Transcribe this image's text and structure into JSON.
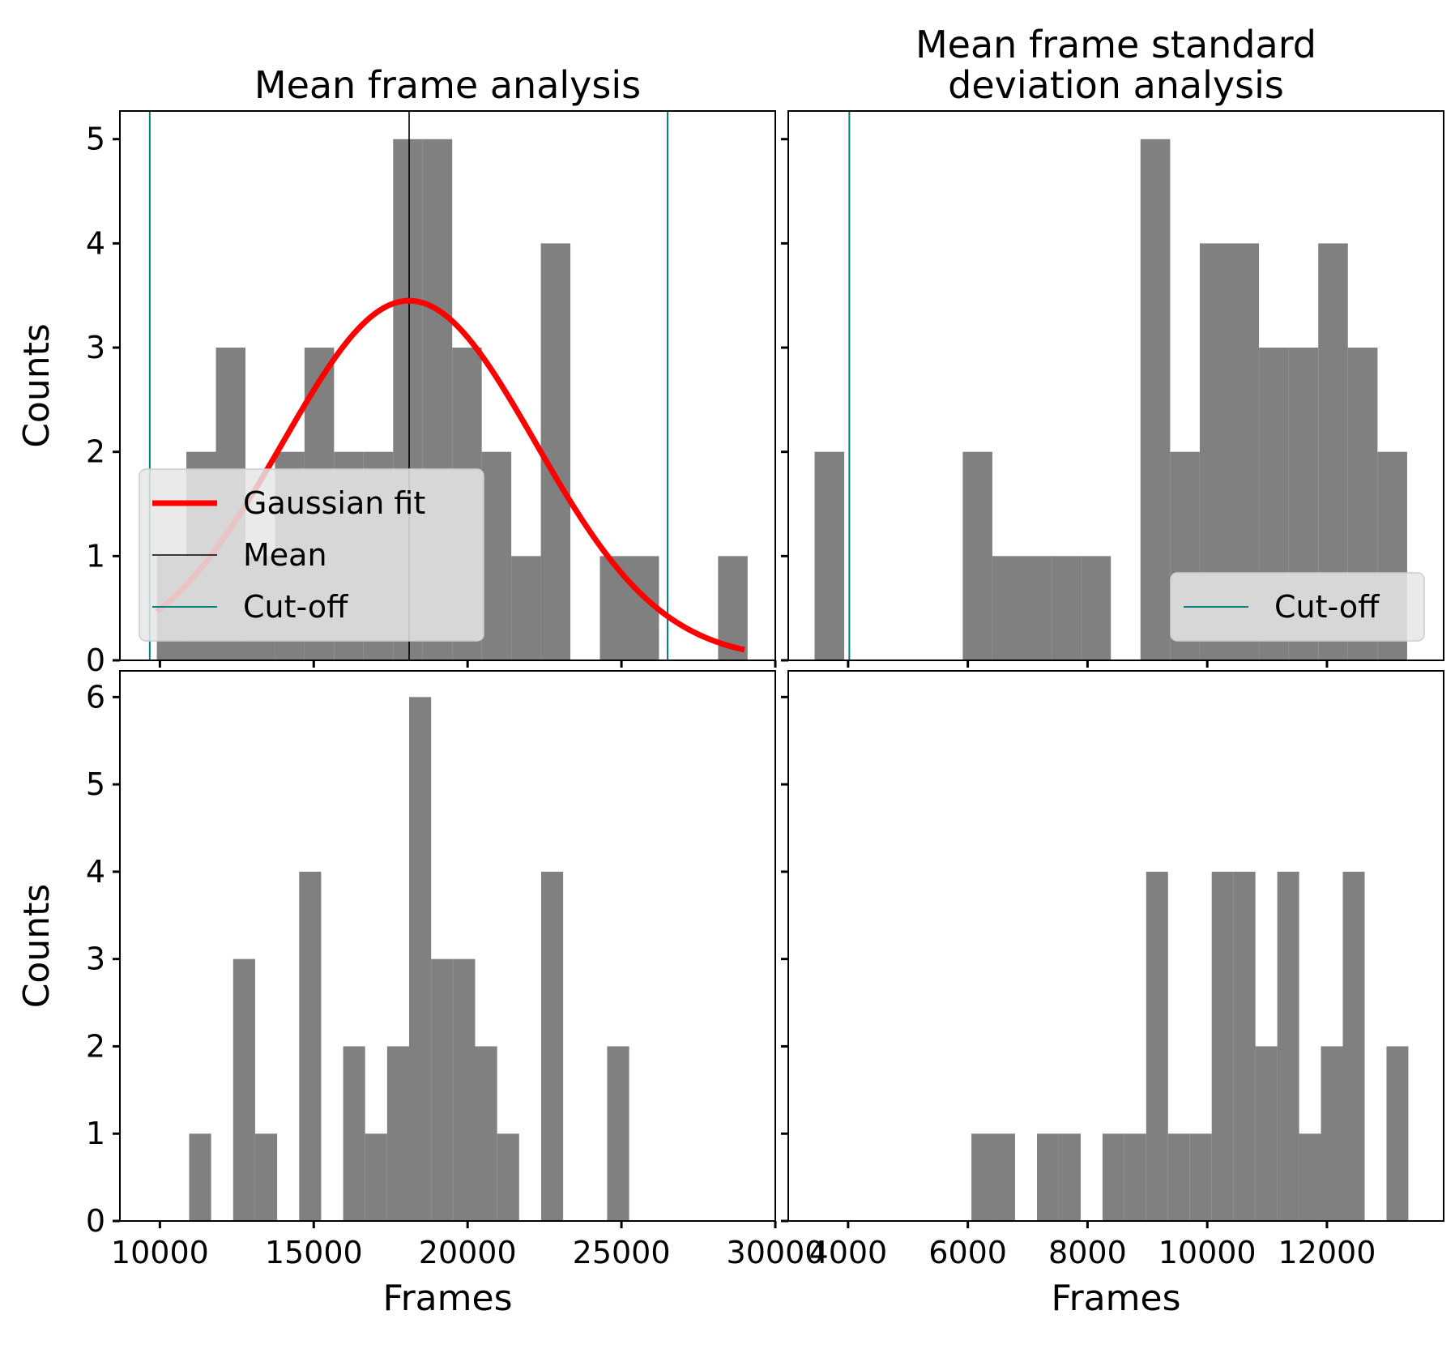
{
  "colors": {
    "bar": "#808080",
    "gaussian": "#ff0000",
    "mean": "#000000",
    "cutoff": "#008080",
    "legend_bg": "#e6e6e6"
  },
  "chart_data": [
    {
      "type": "bar",
      "title": "Mean frame analysis",
      "xlabel": "",
      "ylabel": "Counts",
      "xlim": [
        8700,
        30000
      ],
      "ylim": [
        0,
        5.27
      ],
      "xticks": [
        10000,
        15000,
        20000,
        25000,
        30000
      ],
      "xtick_labels": [
        "",
        "",
        "",
        "",
        ""
      ],
      "yticks": [
        0,
        1,
        2,
        3,
        4,
        5
      ],
      "ytick_labels": [
        "0",
        "1",
        "2",
        "3",
        "4",
        "5"
      ],
      "bin_width": 960,
      "bins": [
        {
          "x0": 9900,
          "count": 1
        },
        {
          "x0": 10860,
          "count": 2
        },
        {
          "x0": 11820,
          "count": 3
        },
        {
          "x0": 12780,
          "count": 1
        },
        {
          "x0": 13740,
          "count": 2
        },
        {
          "x0": 14700,
          "count": 3
        },
        {
          "x0": 15660,
          "count": 2
        },
        {
          "x0": 16620,
          "count": 2
        },
        {
          "x0": 17580,
          "count": 5
        },
        {
          "x0": 18540,
          "count": 5
        },
        {
          "x0": 19500,
          "count": 3
        },
        {
          "x0": 20460,
          "count": 2
        },
        {
          "x0": 21420,
          "count": 1
        },
        {
          "x0": 22380,
          "count": 4
        },
        {
          "x0": 23340,
          "count": 0
        },
        {
          "x0": 24300,
          "count": 1
        },
        {
          "x0": 25260,
          "count": 1
        },
        {
          "x0": 26220,
          "count": 0
        },
        {
          "x0": 27180,
          "count": 0
        },
        {
          "x0": 28140,
          "count": 1
        }
      ],
      "gaussian": {
        "label": "Gaussian fit",
        "amplitude": 3.45,
        "mean": 18100,
        "sigma": 4100,
        "x_range": [
          9900,
          29000
        ]
      },
      "mean_line": {
        "label": "Mean",
        "x": 18100
      },
      "cutoff_lines": {
        "label": "Cut-off",
        "x": [
          9670,
          26500
        ]
      },
      "legend": {
        "location": "lower-left",
        "entries": [
          "Gaussian fit",
          "Mean",
          "Cut-off"
        ]
      }
    },
    {
      "type": "bar",
      "title": "Mean frame standard\ndeviation analysis",
      "xlabel": "",
      "ylabel": "",
      "xlim": [
        3000,
        13950
      ],
      "ylim": [
        0,
        5.27
      ],
      "xticks": [
        4000,
        6000,
        8000,
        10000,
        12000
      ],
      "xtick_labels": [
        "",
        "",
        "",
        "",
        ""
      ],
      "yticks": [
        0,
        1,
        2,
        3,
        4,
        5
      ],
      "ytick_labels": [
        "",
        "",
        "",
        "",
        "",
        ""
      ],
      "bin_width": 495,
      "bins": [
        {
          "x0": 3440,
          "count": 2
        },
        {
          "x0": 3935,
          "count": 0
        },
        {
          "x0": 4430,
          "count": 0
        },
        {
          "x0": 4925,
          "count": 0
        },
        {
          "x0": 5420,
          "count": 0
        },
        {
          "x0": 5915,
          "count": 2
        },
        {
          "x0": 6410,
          "count": 1
        },
        {
          "x0": 6905,
          "count": 1
        },
        {
          "x0": 7400,
          "count": 1
        },
        {
          "x0": 7895,
          "count": 1
        },
        {
          "x0": 8390,
          "count": 0
        },
        {
          "x0": 8885,
          "count": 5
        },
        {
          "x0": 9380,
          "count": 2
        },
        {
          "x0": 9875,
          "count": 4
        },
        {
          "x0": 10370,
          "count": 4
        },
        {
          "x0": 10865,
          "count": 3
        },
        {
          "x0": 11360,
          "count": 3
        },
        {
          "x0": 11855,
          "count": 4
        },
        {
          "x0": 12350,
          "count": 3
        },
        {
          "x0": 12845,
          "count": 2
        }
      ],
      "cutoff_lines": {
        "label": "Cut-off",
        "x": [
          4020
        ]
      },
      "legend": {
        "location": "lower-right",
        "entries": [
          "Cut-off"
        ]
      }
    },
    {
      "type": "bar",
      "title": "",
      "xlabel": "Frames",
      "ylabel": "Counts",
      "xlim": [
        8700,
        30000
      ],
      "ylim": [
        0,
        6.3
      ],
      "xticks": [
        10000,
        15000,
        20000,
        25000,
        30000
      ],
      "xtick_labels": [
        "10000",
        "15000",
        "20000",
        "25000",
        "30000"
      ],
      "yticks": [
        0,
        1,
        2,
        3,
        4,
        5,
        6
      ],
      "ytick_labels": [
        "0",
        "1",
        "2",
        "3",
        "4",
        "5",
        "6"
      ],
      "bin_width": 715,
      "bins": [
        {
          "x0": 10950,
          "count": 1
        },
        {
          "x0": 11665,
          "count": 0
        },
        {
          "x0": 12380,
          "count": 3
        },
        {
          "x0": 13095,
          "count": 1
        },
        {
          "x0": 13810,
          "count": 0
        },
        {
          "x0": 14525,
          "count": 4
        },
        {
          "x0": 15240,
          "count": 0
        },
        {
          "x0": 15955,
          "count": 2
        },
        {
          "x0": 16670,
          "count": 1
        },
        {
          "x0": 17385,
          "count": 2
        },
        {
          "x0": 18100,
          "count": 6
        },
        {
          "x0": 18815,
          "count": 3
        },
        {
          "x0": 19530,
          "count": 3
        },
        {
          "x0": 20245,
          "count": 2
        },
        {
          "x0": 20960,
          "count": 1
        },
        {
          "x0": 21675,
          "count": 0
        },
        {
          "x0": 22390,
          "count": 4
        },
        {
          "x0": 23105,
          "count": 0
        },
        {
          "x0": 23820,
          "count": 0
        },
        {
          "x0": 24535,
          "count": 2
        }
      ]
    },
    {
      "type": "bar",
      "title": "",
      "xlabel": "Frames",
      "ylabel": "",
      "xlim": [
        3000,
        13950
      ],
      "ylim": [
        0,
        6.3
      ],
      "xticks": [
        4000,
        6000,
        8000,
        10000,
        12000
      ],
      "xtick_labels": [
        "4000",
        "6000",
        "8000",
        "10000",
        "12000"
      ],
      "yticks": [
        0,
        1,
        2,
        3,
        4,
        5,
        6
      ],
      "ytick_labels": [
        "",
        "",
        "",
        "",
        "",
        "",
        ""
      ],
      "bin_width": 365,
      "bins": [
        {
          "x0": 6060,
          "count": 1
        },
        {
          "x0": 6425,
          "count": 1
        },
        {
          "x0": 6790,
          "count": 0
        },
        {
          "x0": 7155,
          "count": 1
        },
        {
          "x0": 7520,
          "count": 1
        },
        {
          "x0": 7885,
          "count": 0
        },
        {
          "x0": 8250,
          "count": 1
        },
        {
          "x0": 8615,
          "count": 1
        },
        {
          "x0": 8980,
          "count": 4
        },
        {
          "x0": 9345,
          "count": 1
        },
        {
          "x0": 9710,
          "count": 1
        },
        {
          "x0": 10075,
          "count": 4
        },
        {
          "x0": 10440,
          "count": 4
        },
        {
          "x0": 10805,
          "count": 2
        },
        {
          "x0": 11170,
          "count": 4
        },
        {
          "x0": 11535,
          "count": 1
        },
        {
          "x0": 11900,
          "count": 2
        },
        {
          "x0": 12265,
          "count": 4
        },
        {
          "x0": 12630,
          "count": 0
        },
        {
          "x0": 12995,
          "count": 2
        }
      ]
    }
  ]
}
